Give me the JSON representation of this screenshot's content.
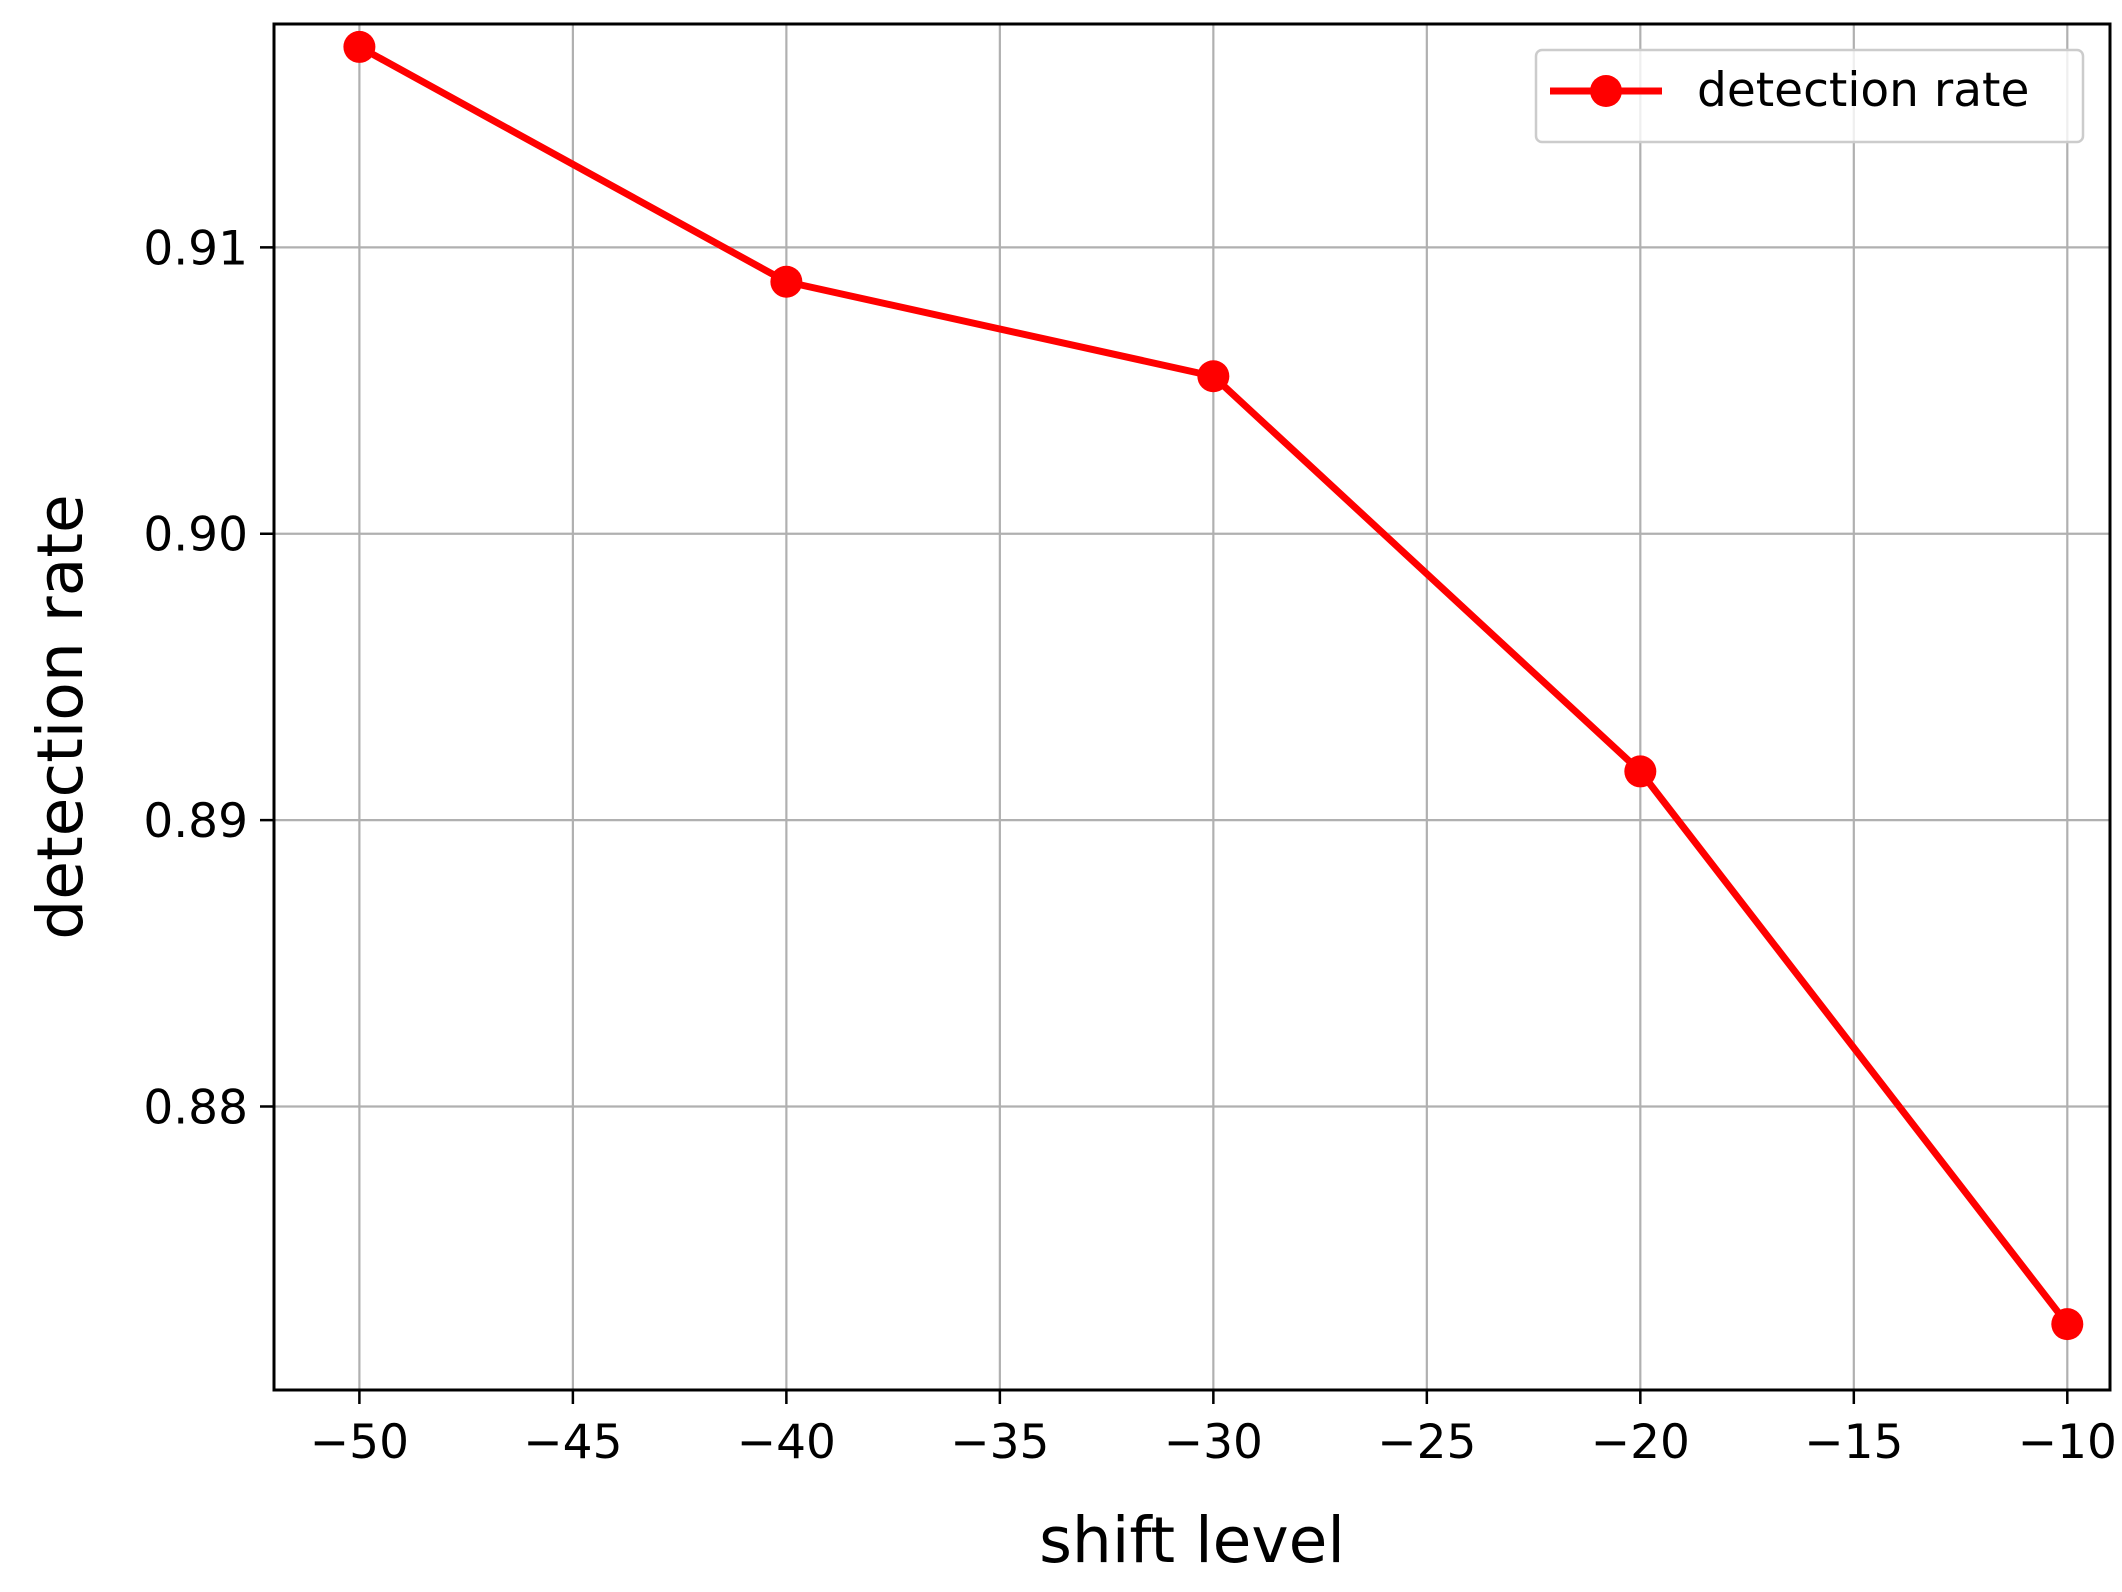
{
  "chart_data": {
    "type": "line",
    "title": "",
    "xlabel": "shift level",
    "ylabel": "detection rate",
    "xlim": [
      -52,
      -9
    ],
    "ylim": [
      0.8701,
      0.9178
    ],
    "x_ticks": [
      -50,
      -45,
      -40,
      -35,
      -30,
      -25,
      -20,
      -15,
      -10
    ],
    "x_tick_labels": [
      "−50",
      "−45",
      "−40",
      "−35",
      "−30",
      "−25",
      "−20",
      "−15",
      "−10"
    ],
    "y_ticks": [
      0.88,
      0.89,
      0.9,
      0.91
    ],
    "y_tick_labels": [
      "0.88",
      "0.89",
      "0.90",
      "0.91"
    ],
    "grid": true,
    "legend_position": "top-right",
    "series": [
      {
        "name": "detection rate",
        "color": "#ff0000",
        "marker": "circle",
        "x": [
          -50,
          -40,
          -30,
          -20,
          -10
        ],
        "y": [
          0.917,
          0.9088,
          0.9055,
          0.8917,
          0.8724
        ]
      }
    ]
  }
}
